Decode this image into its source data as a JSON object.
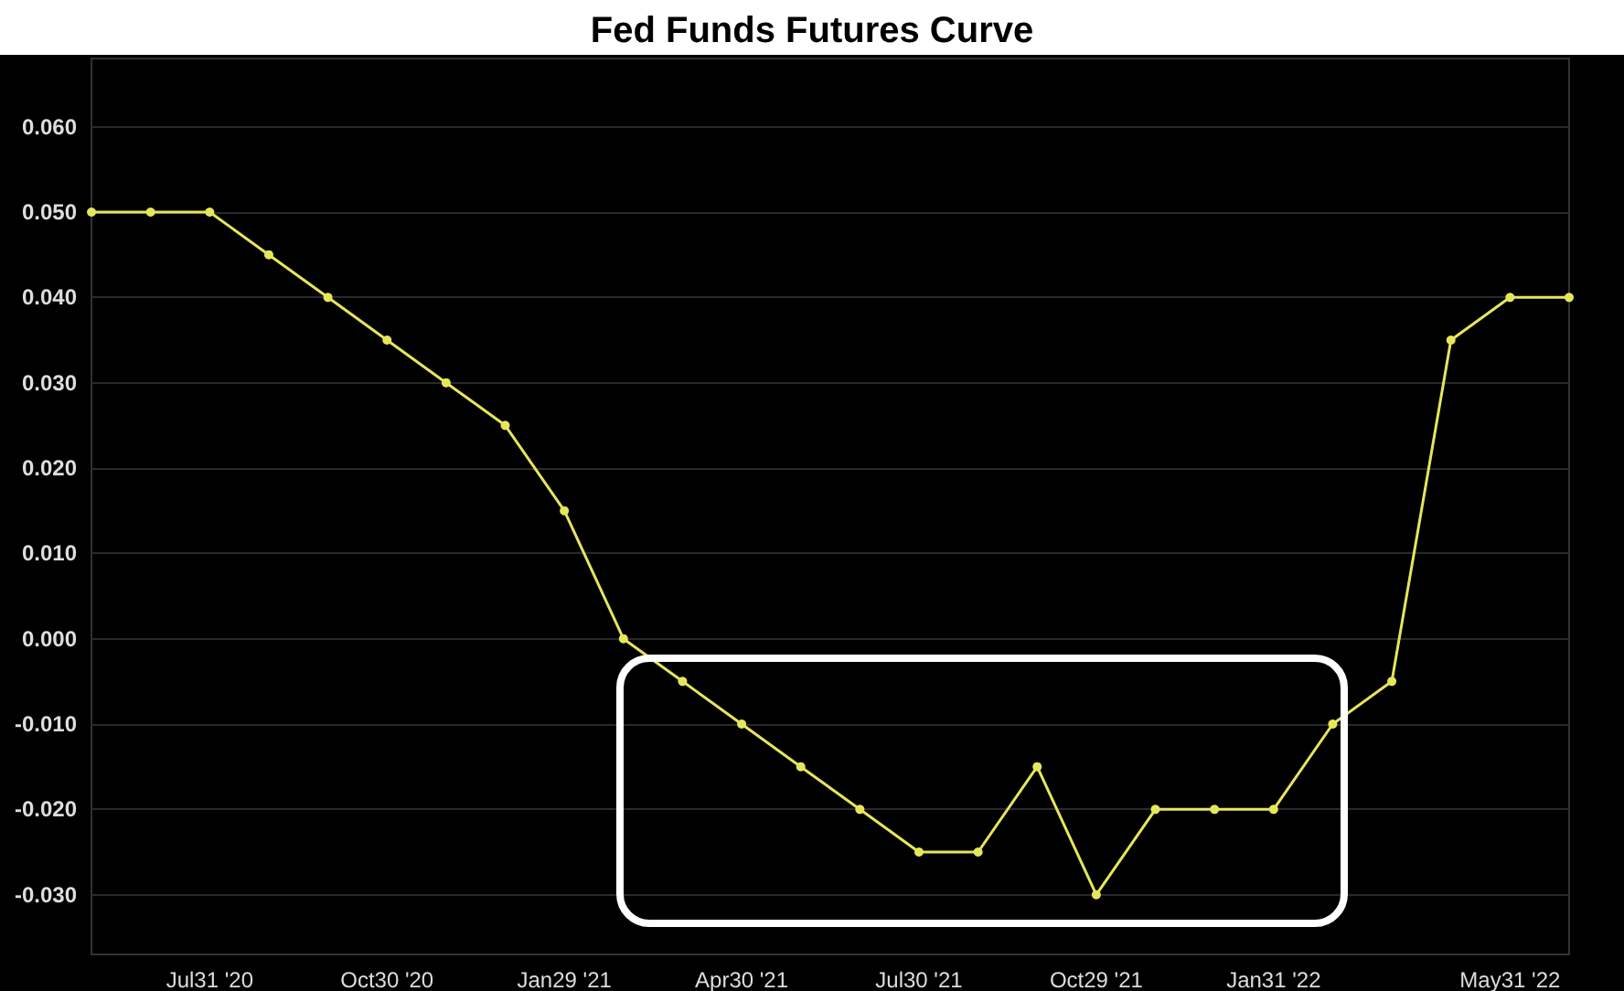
{
  "chart_data": {
    "type": "line",
    "title": "Fed Funds Futures Curve",
    "categories": [
      null,
      null,
      "Jul31 '20",
      null,
      null,
      "Oct30 '20",
      null,
      null,
      "Jan29 '21",
      null,
      null,
      "Apr30 '21",
      null,
      null,
      "Jul30 '21",
      null,
      null,
      "Oct29 '21",
      null,
      null,
      "Jan31 '22",
      null,
      null,
      null,
      "May31 '22",
      null
    ],
    "series": [
      {
        "color": "#e6e65c",
        "values": [
          0.05,
          0.05,
          0.05,
          0.045,
          0.04,
          0.035,
          0.03,
          0.025,
          0.015,
          0.0,
          -0.005,
          -0.01,
          -0.015,
          -0.02,
          -0.025,
          -0.025,
          -0.015,
          -0.03,
          -0.02,
          -0.02,
          -0.02,
          -0.01,
          -0.005,
          0.035,
          0.04,
          0.04
        ]
      }
    ],
    "ylim": [
      -0.037,
      0.068
    ],
    "yticks": [
      {
        "value": -0.03,
        "label": "-0.030"
      },
      {
        "value": -0.02,
        "label": "-0.020"
      },
      {
        "value": -0.01,
        "label": "-0.010"
      },
      {
        "value": 0,
        "label": "0.000"
      },
      {
        "value": 0.01,
        "label": "0.010"
      },
      {
        "value": 0.02,
        "label": "0.020"
      },
      {
        "value": 0.03,
        "label": "0.030"
      },
      {
        "value": 0.04,
        "label": "0.040"
      },
      {
        "value": 0.05,
        "label": "0.050"
      },
      {
        "value": 0.06,
        "label": "0.060"
      }
    ],
    "grid": "y",
    "marker": "circle",
    "line_style": "solid"
  }
}
